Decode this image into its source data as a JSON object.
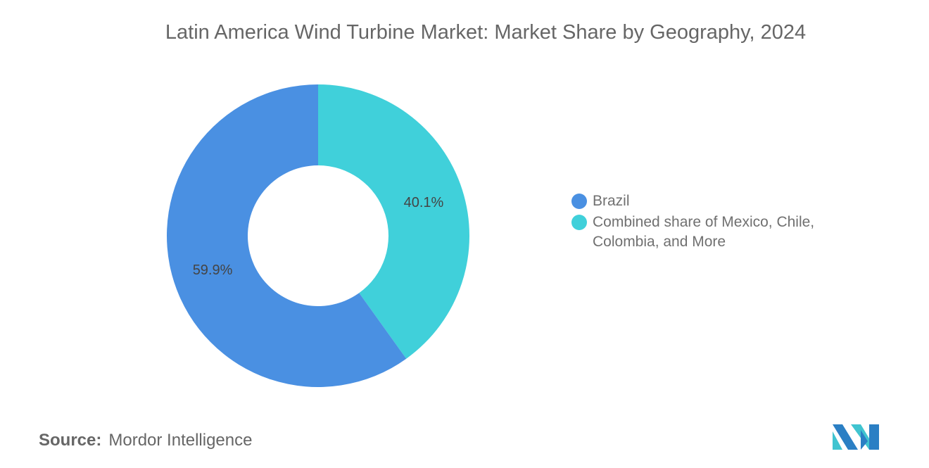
{
  "chart_data": {
    "type": "pie",
    "variant": "donut",
    "title": "Latin America Wind Turbine Market: Market Share by Geography, 2024",
    "categories": [
      "Combined share of Mexico, Chile, Colombia, and More",
      "Brazil"
    ],
    "values": [
      40.1,
      59.9
    ],
    "data_labels": [
      "40.1%",
      "59.9%"
    ],
    "colors": [
      "#40D0DA",
      "#4A90E2"
    ],
    "legend": {
      "position": "right",
      "entries": [
        {
          "label": "Brazil",
          "color": "#4A90E2"
        },
        {
          "label": "Combined share of Mexico, Chile, Colombia, and More",
          "color": "#40D0DA"
        }
      ]
    }
  },
  "source": {
    "label": "Source:",
    "text": "Mordor Intelligence"
  },
  "logo": {
    "brand_colors": [
      "#2B7FC4",
      "#40C4D0"
    ]
  }
}
